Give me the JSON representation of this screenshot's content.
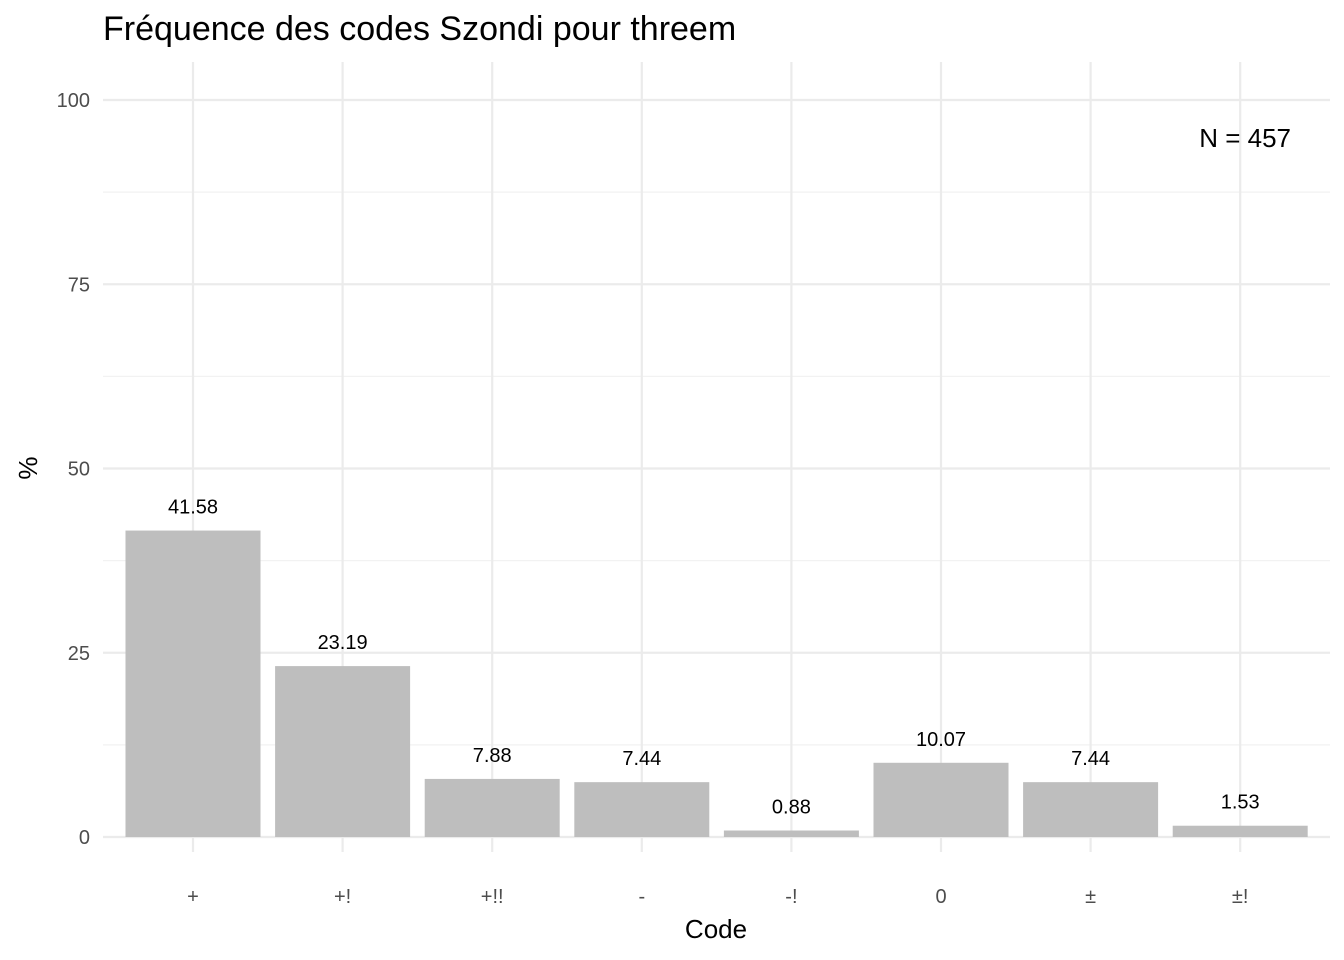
{
  "chart_data": {
    "type": "bar",
    "title": "Fréquence des codes Szondi pour threem",
    "xlabel": "Code",
    "ylabel": "%",
    "categories": [
      "+",
      "+!",
      "+!!",
      "-",
      "-!",
      "0",
      "±",
      "±!"
    ],
    "values": [
      41.58,
      23.19,
      7.88,
      7.44,
      0.88,
      10.07,
      7.44,
      1.53
    ],
    "value_labels": [
      "41.58",
      "23.19",
      "7.88",
      "7.44",
      "0.88",
      "10.07",
      "7.44",
      "1.53"
    ],
    "ylim": [
      0,
      100
    ],
    "yticks": [
      0,
      25,
      50,
      75,
      100
    ],
    "grid": true,
    "annotation": "N = 457",
    "annotation_position": "top-right",
    "bar_color": "#bebebe"
  }
}
